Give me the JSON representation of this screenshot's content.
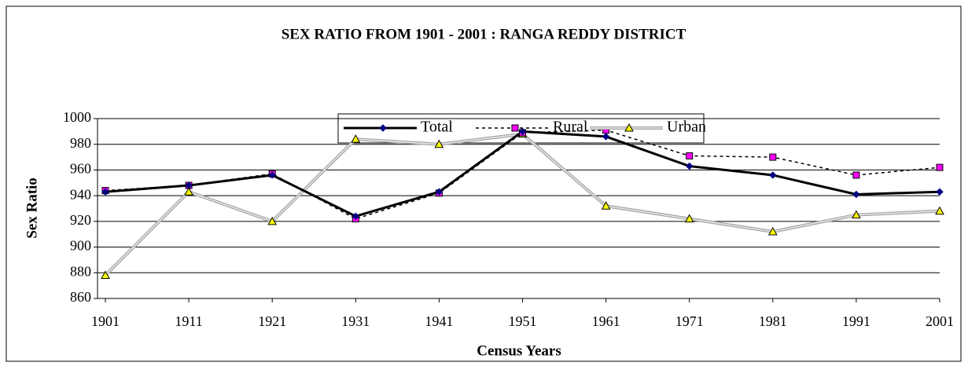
{
  "chart_data": {
    "type": "line",
    "title": "SEX RATIO FROM 1901 - 2001 : RANGA REDDY DISTRICT",
    "xlabel": "Census Years",
    "ylabel": "Sex Ratio",
    "categories": [
      "1901",
      "1911",
      "1921",
      "1931",
      "1941",
      "1951",
      "1961",
      "1971",
      "1981",
      "1991",
      "2001"
    ],
    "series": [
      {
        "name": "Total",
        "color": "#000000",
        "marker": "diamond",
        "marker_color": "#000080",
        "dash": "solid",
        "values": [
          943,
          948,
          956,
          924,
          943,
          990,
          986,
          963,
          956,
          941,
          943
        ]
      },
      {
        "name": "Rural",
        "color": "#000000",
        "marker": "square",
        "marker_color": "#ff00ff",
        "dash": "dashed",
        "values": [
          944,
          948,
          957,
          922,
          942,
          989,
          991,
          971,
          970,
          956,
          962
        ]
      },
      {
        "name": "Urban",
        "color": "#a6a6a6",
        "marker": "triangle",
        "marker_color": "#ffff00",
        "dash": "double",
        "values": [
          878,
          943,
          920,
          984,
          980,
          988,
          932,
          922,
          912,
          925,
          928
        ]
      }
    ],
    "ylim": [
      860,
      1000
    ],
    "yticks": [
      860,
      880,
      900,
      920,
      940,
      960,
      980,
      1000
    ],
    "grid": true,
    "legend": "top"
  }
}
